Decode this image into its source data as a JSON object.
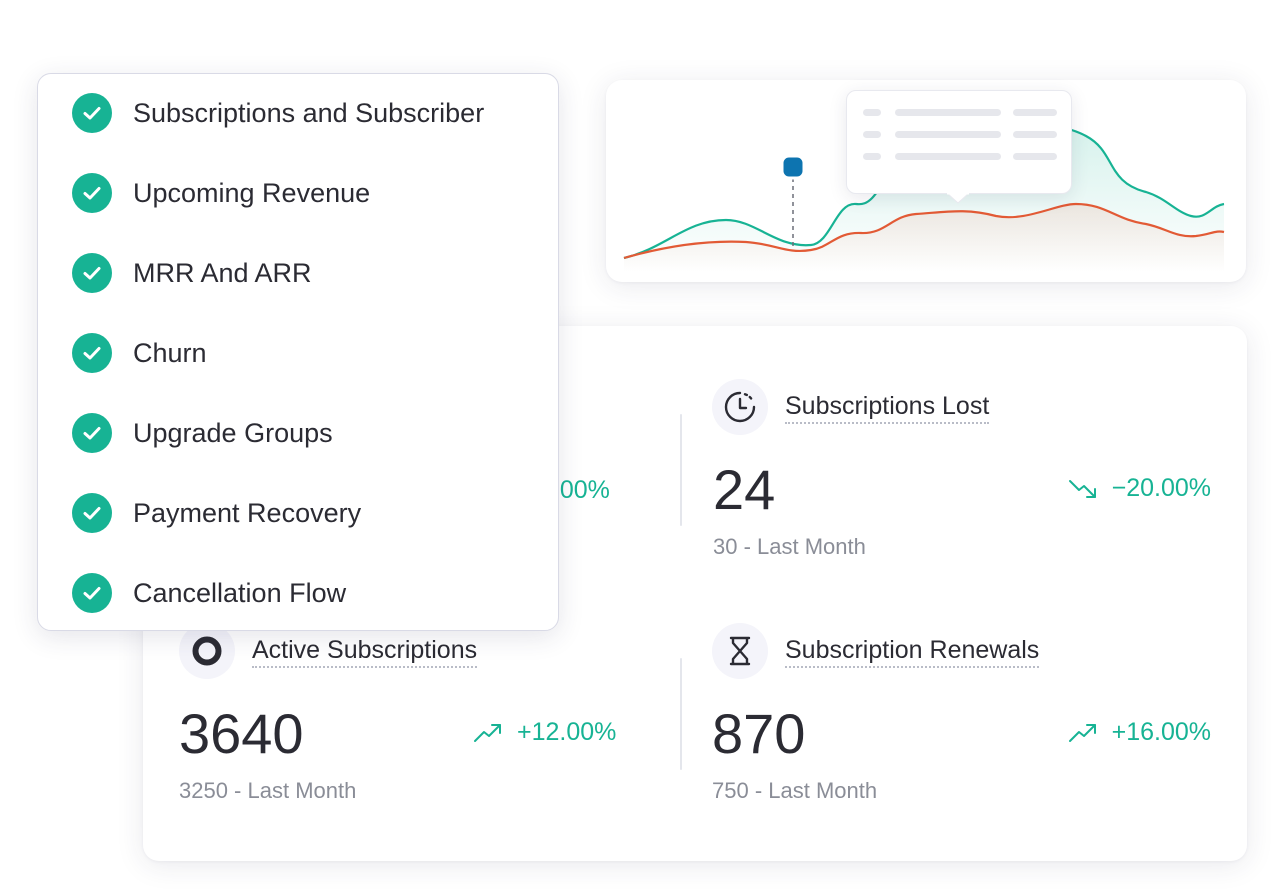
{
  "colors": {
    "accent_green": "#17b394",
    "line_orange": "#e25a35",
    "marker_blue": "#0d74b0",
    "text_dark": "#2b2b33",
    "text_muted": "#8a8d97"
  },
  "checklist": {
    "items": [
      {
        "label": "Subscriptions and Subscriber",
        "icon": "check-circle-icon"
      },
      {
        "label": "Upcoming Revenue",
        "icon": "check-circle-icon"
      },
      {
        "label": "MRR And ARR",
        "icon": "check-circle-icon"
      },
      {
        "label": "Churn",
        "icon": "check-circle-icon"
      },
      {
        "label": "Upgrade Groups",
        "icon": "check-circle-icon"
      },
      {
        "label": "Payment Recovery",
        "icon": "check-circle-icon"
      },
      {
        "label": "Cancellation Flow",
        "icon": "check-circle-icon"
      }
    ]
  },
  "metrics": {
    "hidden_change": ".00%",
    "lost": {
      "title": "Subscriptions Lost",
      "value": "24",
      "prev": "30 - Last Month",
      "change": "−20.00%",
      "trend": "down",
      "icon": "clock-icon"
    },
    "active": {
      "title": "Active Subscriptions",
      "value": "3640",
      "prev": "3250 - Last Month",
      "change": "+12.00%",
      "trend": "up",
      "icon": "ring-icon"
    },
    "renewals": {
      "title": "Subscription Renewals",
      "value": "870",
      "prev": "750 - Last Month",
      "change": "+16.00%",
      "trend": "up",
      "icon": "hourglass-icon"
    }
  }
}
